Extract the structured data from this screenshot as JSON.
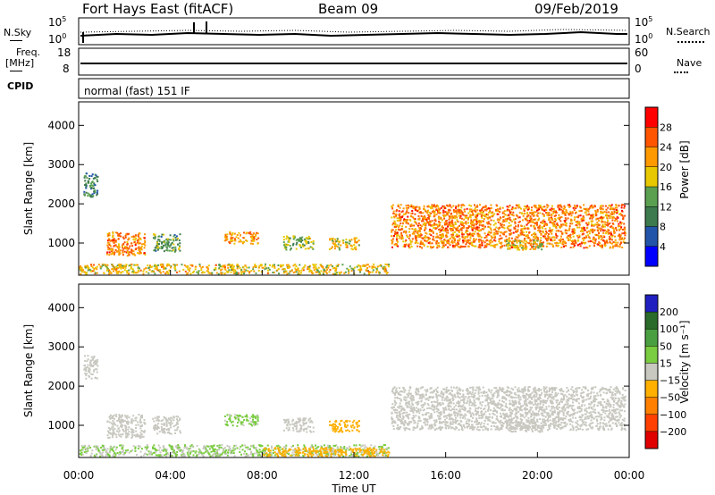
{
  "header": {
    "title": "Fort Hays East (fitACF)",
    "beam": "Beam 09",
    "date": "09/Feb/2019"
  },
  "panels": {
    "nsky_label": "N.Sky",
    "nsearch_label": "N.Search",
    "freq_label": "Freq.",
    "freq_unit": "[MHz]",
    "nave_label": "Nave",
    "cpid_label": "CPID",
    "cpid_value": "normal (fast) 151 IF",
    "noise_left_ticks": [
      "10^5",
      "10^0"
    ],
    "noise_right_ticks": [
      "10^5",
      "10^0"
    ],
    "freq_left_ticks": [
      "18",
      "8"
    ],
    "nave_right_ticks": [
      "60",
      "0"
    ]
  },
  "colors": {
    "power_scale": [
      "#0000ff",
      "#2255aa",
      "#3d7a4e",
      "#5aa050",
      "#e8c800",
      "#ff9900",
      "#ff5500",
      "#ff0000"
    ],
    "velocity_scale": [
      "#2020c0",
      "#2a6a2a",
      "#4aa040",
      "#7acc40",
      "#c8c8c0",
      "#ffb000",
      "#ff8000",
      "#ff4000",
      "#e00000"
    ]
  },
  "chart_data": [
    {
      "type": "heatmap",
      "name": "power",
      "ylabel": "Slant Range [km]",
      "xlabel": "Time UT",
      "x_ticks": [
        "00:00",
        "04:00",
        "08:00",
        "12:00",
        "16:00",
        "20:00",
        "00:00"
      ],
      "y_ticks": [
        1000,
        2000,
        3000,
        4000
      ],
      "xlim_hours": [
        0,
        24
      ],
      "ylim_km": [
        180,
        4600
      ],
      "colorbar": {
        "label": "Power [dB]",
        "ticks": [
          "28",
          "24",
          "20",
          "16",
          "12",
          "8",
          "4"
        ],
        "range": [
          0,
          30
        ]
      },
      "regions": [
        {
          "t0": 0.0,
          "t1": 13.5,
          "r0": 230,
          "r1": 480,
          "value": 18
        },
        {
          "t0": 0.2,
          "t1": 0.8,
          "r0": 2200,
          "r1": 2800,
          "value": 10
        },
        {
          "t0": 1.2,
          "t1": 2.9,
          "r0": 700,
          "r1": 1300,
          "value": 22
        },
        {
          "t0": 3.2,
          "t1": 4.4,
          "r0": 800,
          "r1": 1250,
          "value": 12
        },
        {
          "t0": 6.3,
          "t1": 7.8,
          "r0": 1000,
          "r1": 1300,
          "value": 20
        },
        {
          "t0": 8.9,
          "t1": 10.2,
          "r0": 850,
          "r1": 1200,
          "value": 14
        },
        {
          "t0": 10.9,
          "t1": 12.2,
          "r0": 850,
          "r1": 1150,
          "value": 18
        },
        {
          "t0": 13.6,
          "t1": 23.8,
          "r0": 900,
          "r1": 2000,
          "value": 22
        },
        {
          "t0": 18.6,
          "t1": 20.2,
          "r0": 850,
          "r1": 1100,
          "value": 16
        }
      ]
    },
    {
      "type": "heatmap",
      "name": "velocity",
      "ylabel": "Slant Range [km]",
      "xlabel": "Time UT",
      "x_ticks": [
        "00:00",
        "04:00",
        "08:00",
        "12:00",
        "16:00",
        "20:00",
        "00:00"
      ],
      "y_ticks": [
        1000,
        2000,
        3000,
        4000
      ],
      "xlim_hours": [
        0,
        24
      ],
      "ylim_km": [
        180,
        4600
      ],
      "colorbar": {
        "label": "Velocity [m s⁻¹]",
        "ticks": [
          "200",
          "100",
          "50",
          "15",
          "−15",
          "−50",
          "−100",
          "−200"
        ],
        "range": [
          -250,
          250
        ]
      },
      "regions": [
        {
          "t0": 0.0,
          "t1": 13.5,
          "r0": 230,
          "r1": 520,
          "value": 30
        },
        {
          "t0": 8.0,
          "t1": 13.5,
          "r0": 230,
          "r1": 450,
          "value": -60
        },
        {
          "t0": 0.2,
          "t1": 0.8,
          "r0": 2200,
          "r1": 2800,
          "value": 0
        },
        {
          "t0": 1.2,
          "t1": 2.9,
          "r0": 700,
          "r1": 1300,
          "value": 0
        },
        {
          "t0": 3.2,
          "t1": 4.4,
          "r0": 800,
          "r1": 1250,
          "value": 0
        },
        {
          "t0": 6.3,
          "t1": 7.8,
          "r0": 1000,
          "r1": 1300,
          "value": 40
        },
        {
          "t0": 8.9,
          "t1": 10.2,
          "r0": 850,
          "r1": 1200,
          "value": 0
        },
        {
          "t0": 10.9,
          "t1": 12.2,
          "r0": 850,
          "r1": 1150,
          "value": -60
        },
        {
          "t0": 13.6,
          "t1": 23.8,
          "r0": 900,
          "r1": 2000,
          "value": 0
        },
        {
          "t0": 18.6,
          "t1": 20.2,
          "r0": 850,
          "r1": 1100,
          "value": 0
        }
      ]
    }
  ]
}
